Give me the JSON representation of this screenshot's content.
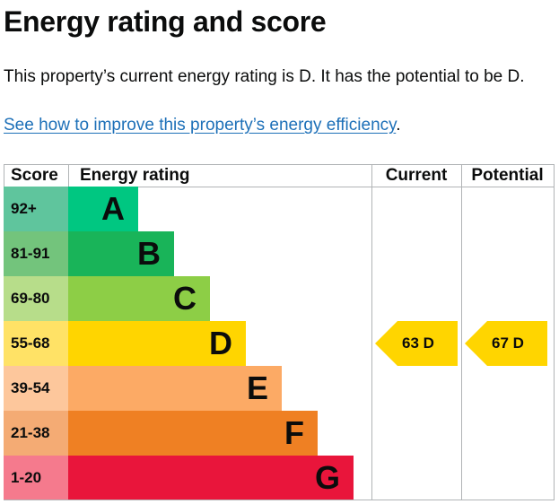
{
  "page": {
    "title": "Energy rating and score",
    "summary": "This property’s current energy rating is D. It has the potential to be D.",
    "link_text": "See how to improve this property’s energy efficiency",
    "link_suffix": "."
  },
  "table": {
    "headers": {
      "score": "Score",
      "rating": "Energy rating",
      "current": "Current",
      "potential": "Potential"
    },
    "bands": [
      {
        "range": "92+",
        "letter": "A",
        "score_color": "#5fc59d",
        "bar_color": "#00c781"
      },
      {
        "range": "81-91",
        "letter": "B",
        "score_color": "#73c47c",
        "bar_color": "#19b459"
      },
      {
        "range": "69-80",
        "letter": "C",
        "score_color": "#b7dd8a",
        "bar_color": "#8dce46"
      },
      {
        "range": "55-68",
        "letter": "D",
        "score_color": "#ffe266",
        "bar_color": "#ffd500"
      },
      {
        "range": "39-54",
        "letter": "E",
        "score_color": "#fdc79c",
        "bar_color": "#fcaa65"
      },
      {
        "range": "21-38",
        "letter": "F",
        "score_color": "#f4ab74",
        "bar_color": "#ef8023"
      },
      {
        "range": "1-20",
        "letter": "G",
        "score_color": "#f57a8d",
        "bar_color": "#e9153b"
      }
    ],
    "current": {
      "label": "63 D",
      "band": "D",
      "color": "#ffd500"
    },
    "potential": {
      "label": "67 D",
      "band": "D",
      "color": "#ffd500"
    }
  }
}
